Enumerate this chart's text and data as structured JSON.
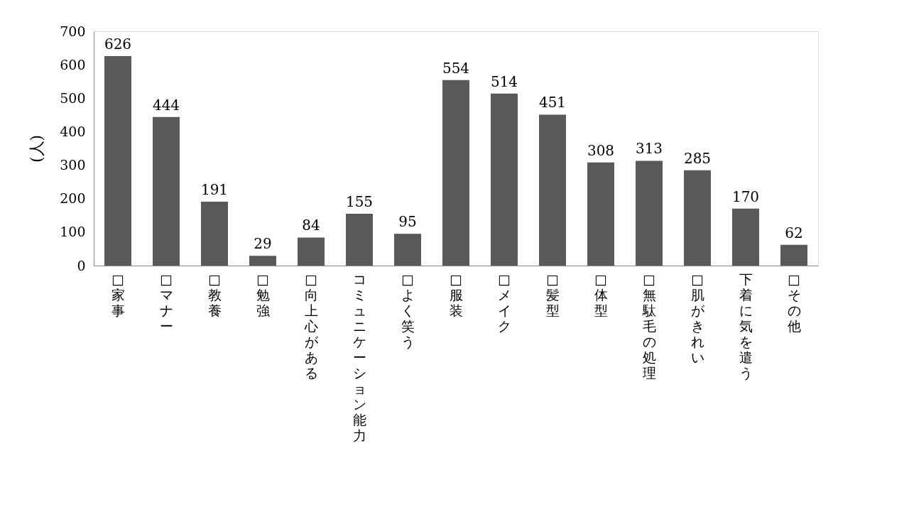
{
  "chart_data": {
    "type": "bar",
    "ylabel": "(人)",
    "categories": [
      "□家事",
      "□マナー",
      "□教養",
      "□勉強",
      "□向上心がある",
      "コミュニケーション能力",
      "□よく笑う",
      "□服装",
      "□メイク",
      "□髪型",
      "□体型",
      "□無駄毛の処理",
      "□肌がきれい",
      "下着に気を遣う",
      "□その他"
    ],
    "values": [
      626,
      444,
      191,
      29,
      84,
      155,
      95,
      554,
      514,
      451,
      308,
      313,
      285,
      170,
      62
    ],
    "color": "#595959",
    "ylim": [
      0,
      700
    ],
    "yticks": [
      0,
      100,
      200,
      300,
      400,
      500,
      600,
      700
    ],
    "grid": false,
    "data_labels": true
  }
}
